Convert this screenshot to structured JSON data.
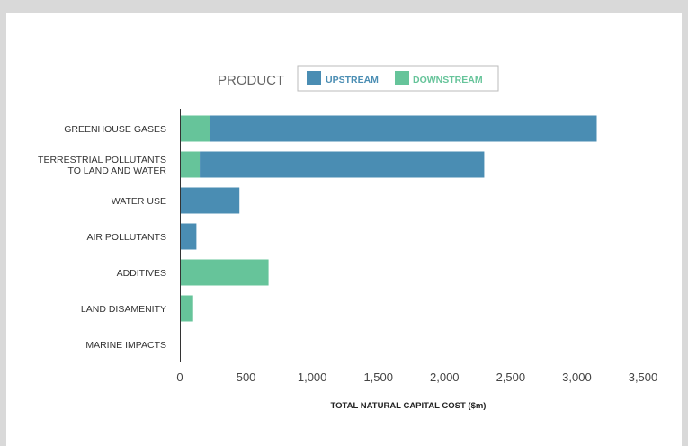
{
  "chart_data": {
    "type": "bar",
    "orientation": "horizontal",
    "stacked": true,
    "legend": {
      "title": "PRODUCT",
      "position": "top-center",
      "items": [
        {
          "name": "UPSTREAM",
          "color": "#4a8db3"
        },
        {
          "name": "DOWNSTREAM",
          "color": "#66c49a"
        }
      ]
    },
    "categories": [
      [
        "GREENHOUSE GASES"
      ],
      [
        "TERRESTRIAL POLLUTANTS",
        "TO LAND AND WATER"
      ],
      [
        "WATER USE"
      ],
      [
        "AIR POLLUTANTS"
      ],
      [
        "ADDITIVES"
      ],
      [
        "LAND DISAMENITY"
      ],
      [
        "MARINE IMPACTS"
      ]
    ],
    "series": [
      {
        "name": "DOWNSTREAM",
        "color": "#66c49a",
        "values": [
          230,
          150,
          5,
          0,
          670,
          100,
          0
        ]
      },
      {
        "name": "UPSTREAM",
        "color": "#4a8db3",
        "values": [
          2920,
          2150,
          445,
          125,
          0,
          0,
          0
        ]
      }
    ],
    "xlim": [
      0,
      3500
    ],
    "xticks": [
      "0",
      "500",
      "1,000",
      "1,500",
      "2,000",
      "2,500",
      "3,000",
      "3,500"
    ],
    "xlabel": "TOTAL NATURAL CAPITAL COST ($m)",
    "ylabel": "",
    "grid": false
  }
}
